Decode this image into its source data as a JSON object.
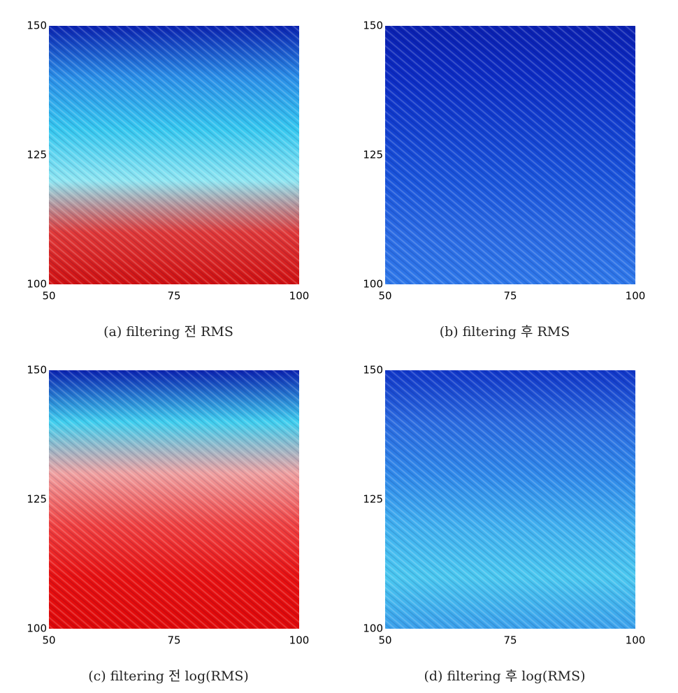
{
  "chart_data": [
    {
      "type": "heatmap",
      "title": "(a) filtering 전 RMS",
      "xlim": [
        50,
        100
      ],
      "ylim": [
        100,
        150
      ],
      "xticks": [
        50,
        75,
        100
      ],
      "yticks": [
        100,
        125,
        150
      ],
      "colors": [
        "#0a22b0",
        "#2a8fe8",
        "#35c8f0",
        "#8fe6f2",
        "#e03838",
        "#d01010"
      ]
    },
    {
      "type": "heatmap",
      "title": "(b) filtering 후 RMS",
      "xlim": [
        50,
        100
      ],
      "ylim": [
        100,
        150
      ],
      "xticks": [
        50,
        75,
        100
      ],
      "yticks": [
        100,
        125,
        150
      ],
      "colors": [
        "#0a20b0",
        "#0c2cc4",
        "#1240d0",
        "#1a55dc",
        "#2a6ae4",
        "#2e78ea"
      ]
    },
    {
      "type": "heatmap",
      "title": "(c) filtering 전 log(RMS)",
      "xlim": [
        50,
        100
      ],
      "ylim": [
        100,
        150
      ],
      "xticks": [
        50,
        75,
        100
      ],
      "yticks": [
        100,
        125,
        150
      ],
      "colors": [
        "#0a22b0",
        "#40d0f0",
        "#f0a0a0",
        "#f04040",
        "#e81010",
        "#e00808"
      ]
    },
    {
      "type": "heatmap",
      "title": "(d) filtering 후 log(RMS)",
      "xlim": [
        50,
        100
      ],
      "ylim": [
        100,
        150
      ],
      "xticks": [
        50,
        75,
        100
      ],
      "yticks": [
        100,
        125,
        150
      ],
      "colors": [
        "#1036c8",
        "#2a6ae0",
        "#2f88ea",
        "#40b0f0",
        "#4ac8f0",
        "#3aa0ec"
      ]
    }
  ]
}
